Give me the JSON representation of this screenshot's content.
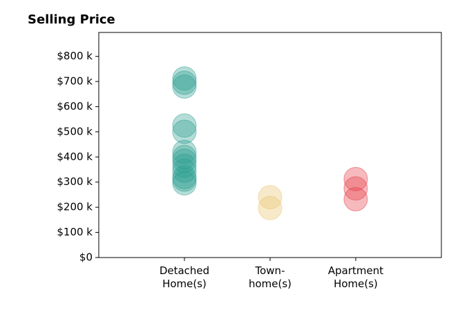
{
  "chart_data": {
    "type": "strip",
    "title": "Selling Price",
    "categories": [
      "Detached\nHome(s)",
      "Town-\nhome(s)",
      "Apartment\nHome(s)"
    ],
    "colors": [
      "#2a9d8f",
      "#e9c46a",
      "#e63946"
    ],
    "values": [
      [
        712000,
        695000,
        680000,
        525000,
        500000,
        420000,
        400000,
        385000,
        365000,
        345000,
        320000,
        310000,
        295000
      ],
      [
        240000,
        197000
      ],
      [
        312000,
        275000,
        232000
      ]
    ],
    "xlim": [
      0,
      4
    ],
    "ylim": [
      0,
      895000
    ],
    "yticks": [
      {
        "value": 0,
        "label": "$0"
      },
      {
        "value": 100000,
        "label": "$100 k"
      },
      {
        "value": 200000,
        "label": "$200 k"
      },
      {
        "value": 300000,
        "label": "$300 k"
      },
      {
        "value": 400000,
        "label": "$400 k"
      },
      {
        "value": 500000,
        "label": "$500 k"
      },
      {
        "value": 600000,
        "label": "$600 k"
      },
      {
        "value": 700000,
        "label": "$700 k"
      },
      {
        "value": 800000,
        "label": "$800 k"
      }
    ]
  }
}
